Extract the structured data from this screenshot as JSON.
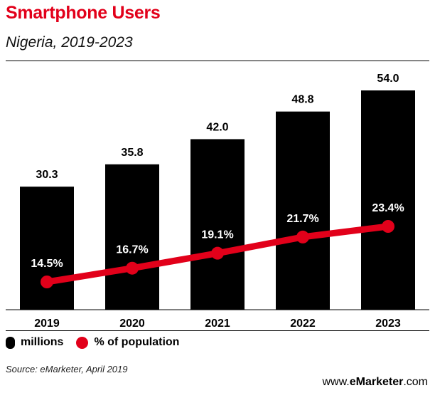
{
  "chart_data": {
    "type": "bar",
    "title": "Smartphone Users",
    "subtitle": "Nigeria, 2019-2023",
    "categories": [
      "2019",
      "2020",
      "2021",
      "2022",
      "2023"
    ],
    "series": [
      {
        "name": "millions",
        "type": "bar",
        "values": [
          30.3,
          35.8,
          42.0,
          48.8,
          54.0
        ],
        "labels": [
          "30.3",
          "35.8",
          "42.0",
          "48.8",
          "54.0"
        ],
        "color": "#000000"
      },
      {
        "name": "% of population",
        "type": "line",
        "values": [
          14.5,
          16.7,
          19.1,
          21.7,
          23.4
        ],
        "labels": [
          "14.5%",
          "16.7%",
          "19.1%",
          "21.7%",
          "23.4%"
        ],
        "color": "#e2001a"
      }
    ],
    "legend": {
      "items": [
        "millions",
        "% of population"
      ],
      "placement": "bottom-left"
    },
    "source": "Source: eMarketer, April 2019"
  },
  "brand": {
    "prefix": "www.",
    "name": "eMarketer",
    "suffix": ".com"
  }
}
